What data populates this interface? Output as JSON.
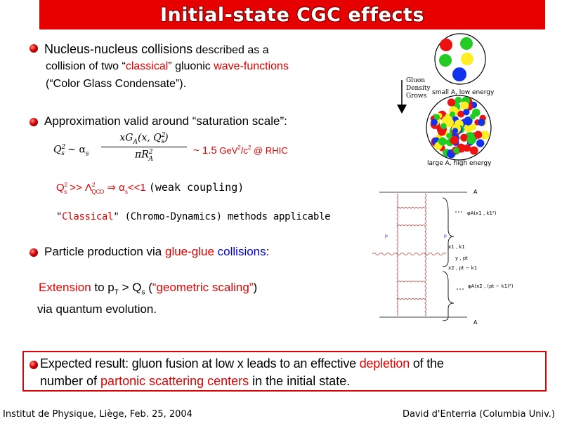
{
  "title": "Initial-state CGC effects",
  "bullet1": {
    "line1": "Nucleus-nucleus collisions",
    "line1b": " described as a",
    "line2a": "collision of two “",
    "line2_classical": "classical",
    "line2b": "” gluonic ",
    "line2_wave": "wave-functions",
    "line3": "(“Color Glass Condensate”)."
  },
  "bullet2": {
    "text": "Approximation valid around “saturation scale”:",
    "formula_lhs": "Q",
    "formula_sim": "∼ α",
    "frac_num": "xG",
    "frac_num2": "(x, Q",
    "frac_num3": ")",
    "frac_den": "πR",
    "approx": "~ 1.5",
    "unit": " GeV",
    "unit2": "/c",
    "rhic": " @ RHIC",
    "q_line_a": "Q",
    "q_line_b": " >> Λ",
    "q_line_c": "QCD",
    "q_line_d": "  ⇒  α",
    "q_line_e": "s",
    "q_line_f": "<<1  ",
    "weak": "(weak coupling)",
    "classical_methods": "Classical",
    "methods_rest": " (Chromo-Dynamics) methods applicable",
    "quote": "\""
  },
  "bullet3": {
    "text_a": "Particle production via ",
    "glue": "glue-glue",
    "collisions": " collisions",
    "colon": ":",
    "ext_a": "Extension",
    "ext_b": " to p",
    "ext_c": "T",
    "ext_d": " > Q",
    "ext_e": "s",
    "ext_f": " (",
    "ext_g": "“geometric scaling”",
    "ext_h": ")",
    "quantum": "via quantum evolution."
  },
  "result": {
    "a": "Expected result: gluon fusion at low x leads to an effective ",
    "depletion": "depletion",
    "b": " of the",
    "c": "number of ",
    "partonic": "partonic scattering centers",
    "d": " in the initial state."
  },
  "footer": {
    "left": "Institut de Physique, Liège, Feb. 25, 2004",
    "right": "David d'Enterria (Columbia Univ.)"
  },
  "figure": {
    "gluon_density": [
      "Gluon",
      "Density",
      "Grows"
    ],
    "small_label": "small A, low energy",
    "large_label": "large A, high energy",
    "diagram_A": "A",
    "diagram_phi1": "φA(x1 , k1²)",
    "diagram_phi2": "φA(x2 , (pt − k1)²)",
    "diagram_x1": "x1 , k1",
    "diagram_y": "y , pt",
    "diagram_x2": "x2 , pt − k1"
  },
  "colors": {
    "accent_red": "#e00000",
    "accent_blue": "#0000cc",
    "title_bg": "#e60000"
  }
}
